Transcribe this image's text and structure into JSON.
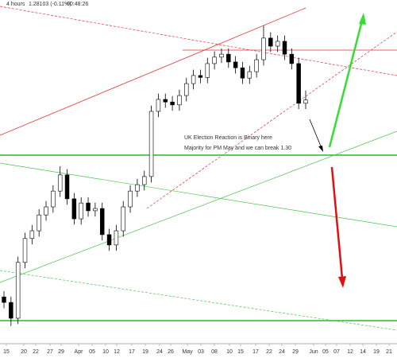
{
  "chart_data": {
    "type": "candlestick",
    "header": {
      "timeframe": "4 hours",
      "price": "1.28103 (-0.11%)",
      "time": "00:48:26"
    },
    "annotation": [
      "UK Election Reaction is Binary here",
      "Majority for PM May and we can break 1.30"
    ],
    "x_labels": [
      "15",
      "20",
      "22",
      "27",
      "29",
      "Apr",
      "05",
      "10",
      "12",
      "17",
      "19",
      "24",
      "26",
      "May",
      "03",
      "08",
      "10",
      "15",
      "17",
      "22",
      "24",
      "29",
      "Jun",
      "05",
      "07",
      "12",
      "14",
      "19",
      "21"
    ],
    "ylim": [
      1.206,
      1.312
    ],
    "up_color": "#ffffff",
    "down_color": "#000000",
    "open": [
      1.22,
      1.2183,
      1.2134,
      1.2307,
      1.2381,
      1.2405,
      1.2454,
      1.2479,
      1.2528,
      1.2578,
      1.2504,
      1.2442,
      1.2491,
      1.2467,
      1.2474,
      1.2393,
      1.2361,
      1.2405,
      1.2479,
      1.2528,
      1.2548,
      1.2573,
      1.2775,
      1.2812,
      1.2804,
      1.2795,
      1.2824,
      1.2861,
      1.2886,
      1.288,
      1.2923,
      1.2943,
      1.2952,
      1.2928,
      1.291,
      1.2878,
      1.2898,
      1.2935,
      1.3002,
      1.2977,
      1.2992,
      1.2952,
      1.2923,
      1.28
    ],
    "high": [
      1.2218,
      1.2201,
      1.2325,
      1.2399,
      1.2423,
      1.2472,
      1.2497,
      1.2546,
      1.2605,
      1.2596,
      1.2522,
      1.2509,
      1.2509,
      1.2492,
      1.2492,
      1.2411,
      1.2423,
      1.2497,
      1.2546,
      1.2566,
      1.2591,
      1.2793,
      1.283,
      1.283,
      1.2822,
      1.2842,
      1.2879,
      1.2904,
      1.2904,
      1.2941,
      1.2961,
      1.297,
      1.297,
      1.2946,
      1.2928,
      1.2916,
      1.2953,
      1.304,
      1.302,
      1.301,
      1.301,
      1.297,
      1.2941,
      1.284
    ],
    "low": [
      1.2165,
      1.211,
      1.2116,
      1.2289,
      1.2363,
      1.2387,
      1.2436,
      1.2461,
      1.251,
      1.2486,
      1.2424,
      1.2424,
      1.2449,
      1.2449,
      1.2375,
      1.2343,
      1.2343,
      1.2387,
      1.2461,
      1.251,
      1.253,
      1.2555,
      1.2757,
      1.2786,
      1.2777,
      1.2777,
      1.2806,
      1.2843,
      1.2862,
      1.2862,
      1.2905,
      1.2925,
      1.291,
      1.2892,
      1.286,
      1.286,
      1.288,
      1.2917,
      1.2959,
      1.2959,
      1.2934,
      1.2905,
      1.2782,
      1.2782
    ],
    "close": [
      1.2183,
      1.2134,
      1.2307,
      1.2381,
      1.2405,
      1.2454,
      1.2479,
      1.2528,
      1.2578,
      1.2504,
      1.2442,
      1.2491,
      1.2467,
      1.2474,
      1.2393,
      1.2361,
      1.2405,
      1.2479,
      1.2528,
      1.2548,
      1.2573,
      1.2775,
      1.2812,
      1.2804,
      1.2795,
      1.2824,
      1.2861,
      1.2886,
      1.288,
      1.2923,
      1.2943,
      1.2952,
      1.2928,
      1.291,
      1.2878,
      1.2898,
      1.2935,
      1.3002,
      1.2977,
      1.2992,
      1.2952,
      1.2923,
      1.28,
      1.281
    ]
  }
}
